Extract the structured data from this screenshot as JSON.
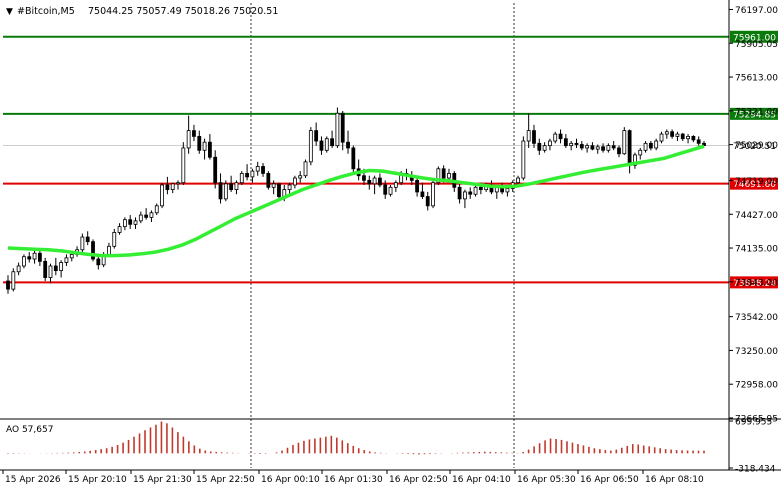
{
  "header": {
    "symbol": "#Bitcoin,M5",
    "ohlc": "75044.25 75057.49 75018.26 75020.51"
  },
  "colors": {
    "background": "#ffffff",
    "axis": "#000000",
    "grid": "#c8c8c8",
    "candle": "#000000",
    "ma": "#33ee33",
    "green_level": "#0a7a0a",
    "red_level": "#e00000",
    "ao": "#c0392b",
    "label_text": "#ffffff"
  },
  "chart_data": [
    {
      "type": "candlestick",
      "title": "#Bitcoin,M5",
      "y_ticks": [
        "76197.00",
        "75905.05",
        "75613.00",
        "75321.00",
        "75029.00",
        "74719.00",
        "74427.00",
        "74135.00",
        "73843.00",
        "73542.00",
        "73250.00",
        "72958.00",
        "72665.95"
      ],
      "ylim": [
        72665.95,
        76253
      ],
      "x_ticks": [
        "15 Apr 2026",
        "15 Apr 20:10",
        "15 Apr 21:30",
        "15 Apr 22:50",
        "16 Apr 00:10",
        "16 Apr 01:30",
        "16 Apr 02:50",
        "16 Apr 04:10",
        "16 Apr 05:30",
        "16 Apr 06:50",
        "16 Apr 08:10"
      ],
      "levels": [
        {
          "value": 75961.0,
          "label": "75961.00",
          "color": "green"
        },
        {
          "value": 75294.85,
          "label": "75294.85",
          "color": "green"
        },
        {
          "value": 74691.6,
          "label": "74691.60",
          "color": "red"
        },
        {
          "value": 73838.24,
          "label": "73838.24",
          "color": "red"
        }
      ],
      "current_price": {
        "value": 75020.51,
        "label": "75020.51"
      },
      "candles": [
        [
          73850,
          73900,
          73740,
          73780
        ],
        [
          73780,
          73960,
          73760,
          73930
        ],
        [
          73930,
          74010,
          73900,
          73980
        ],
        [
          73980,
          74080,
          73960,
          74060
        ],
        [
          74060,
          74100,
          74010,
          74040
        ],
        [
          74040,
          74120,
          74000,
          74090
        ],
        [
          74090,
          74130,
          73980,
          74020
        ],
        [
          74020,
          74050,
          73850,
          73880
        ],
        [
          73880,
          74000,
          73830,
          73980
        ],
        [
          73980,
          74050,
          73900,
          73940
        ],
        [
          73940,
          74030,
          73880,
          74010
        ],
        [
          74010,
          74080,
          73980,
          74050
        ],
        [
          74050,
          74110,
          74020,
          74080
        ],
        [
          74080,
          74150,
          74060,
          74120
        ],
        [
          74120,
          74260,
          74100,
          74230
        ],
        [
          74230,
          74280,
          74160,
          74190
        ],
        [
          74190,
          74210,
          74020,
          74040
        ],
        [
          74040,
          74080,
          73950,
          73990
        ],
        [
          73990,
          74100,
          73970,
          74080
        ],
        [
          74080,
          74180,
          74060,
          74150
        ],
        [
          74150,
          74300,
          74130,
          74270
        ],
        [
          74270,
          74350,
          74250,
          74320
        ],
        [
          74320,
          74400,
          74290,
          74380
        ],
        [
          74380,
          74420,
          74300,
          74340
        ],
        [
          74340,
          74400,
          74300,
          74370
        ],
        [
          74370,
          74450,
          74350,
          74420
        ],
        [
          74420,
          74480,
          74380,
          74400
        ],
        [
          74400,
          74460,
          74360,
          74440
        ],
        [
          74440,
          74520,
          74420,
          74500
        ],
        [
          74500,
          74700,
          74480,
          74680
        ],
        [
          74680,
          74750,
          74600,
          74640
        ],
        [
          74640,
          74700,
          74610,
          74690
        ],
        [
          74690,
          74720,
          74640,
          74700
        ],
        [
          74700,
          75050,
          74680,
          75000
        ],
        [
          75000,
          75280,
          74950,
          75150
        ],
        [
          75150,
          75200,
          75060,
          75100
        ],
        [
          75100,
          75150,
          74950,
          74980
        ],
        [
          74980,
          75080,
          74900,
          75050
        ],
        [
          75050,
          75120,
          74900,
          74920
        ],
        [
          74920,
          74980,
          74650,
          74700
        ],
        [
          74700,
          74780,
          74520,
          74560
        ],
        [
          74560,
          74720,
          74540,
          74690
        ],
        [
          74690,
          74760,
          74620,
          74640
        ],
        [
          74640,
          74720,
          74600,
          74700
        ],
        [
          74700,
          74800,
          74680,
          74780
        ],
        [
          74780,
          74860,
          74720,
          74750
        ],
        [
          74750,
          74820,
          74700,
          74800
        ],
        [
          74800,
          74880,
          74760,
          74840
        ],
        [
          74840,
          74870,
          74750,
          74780
        ],
        [
          74780,
          74800,
          74640,
          74660
        ],
        [
          74660,
          74720,
          74600,
          74690
        ],
        [
          74690,
          74700,
          74560,
          74580
        ],
        [
          74580,
          74680,
          74540,
          74640
        ],
        [
          74640,
          74700,
          74600,
          74680
        ],
        [
          74680,
          74760,
          74650,
          74740
        ],
        [
          74740,
          74800,
          74700,
          74760
        ],
        [
          74760,
          74900,
          74740,
          74880
        ],
        [
          74880,
          75180,
          74850,
          75150
        ],
        [
          75150,
          75220,
          75020,
          75060
        ],
        [
          75060,
          75100,
          74940,
          74980
        ],
        [
          74980,
          75100,
          74960,
          75080
        ],
        [
          75080,
          75150,
          75000,
          75020
        ],
        [
          75020,
          75350,
          75000,
          75300
        ],
        [
          75300,
          75320,
          74980,
          75050
        ],
        [
          75050,
          75150,
          74950,
          75000
        ],
        [
          75000,
          75020,
          74780,
          74820
        ],
        [
          74820,
          74900,
          74720,
          74760
        ],
        [
          74760,
          74820,
          74680,
          74720
        ],
        [
          74720,
          74760,
          74640,
          74690
        ],
        [
          74690,
          74760,
          74600,
          74740
        ],
        [
          74740,
          74780,
          74660,
          74680
        ],
        [
          74680,
          74720,
          74560,
          74600
        ],
        [
          74600,
          74680,
          74580,
          74660
        ],
        [
          74660,
          74720,
          74620,
          74700
        ],
        [
          74700,
          74800,
          74680,
          74780
        ],
        [
          74780,
          74820,
          74720,
          74760
        ],
        [
          74760,
          74800,
          74680,
          74720
        ],
        [
          74720,
          74760,
          74580,
          74620
        ],
        [
          74620,
          74700,
          74560,
          74580
        ],
        [
          74580,
          74620,
          74460,
          74500
        ],
        [
          74500,
          74720,
          74480,
          74700
        ],
        [
          74700,
          74840,
          74680,
          74820
        ],
        [
          74820,
          74850,
          74700,
          74740
        ],
        [
          74740,
          74820,
          74700,
          74780
        ],
        [
          74780,
          74800,
          74620,
          74660
        ],
        [
          74660,
          74700,
          74520,
          74560
        ],
        [
          74560,
          74640,
          74480,
          74620
        ],
        [
          74620,
          74660,
          74560,
          74600
        ],
        [
          74600,
          74680,
          74580,
          74660
        ],
        [
          74660,
          74700,
          74600,
          74640
        ],
        [
          74640,
          74700,
          74620,
          74680
        ],
        [
          74680,
          74720,
          74600,
          74620
        ],
        [
          74620,
          74680,
          74560,
          74660
        ],
        [
          74660,
          74700,
          74600,
          74620
        ],
        [
          74620,
          74680,
          74580,
          74650
        ],
        [
          74650,
          74720,
          74620,
          74700
        ],
        [
          74700,
          74760,
          74660,
          74740
        ],
        [
          74740,
          75100,
          74720,
          75060
        ],
        [
          75060,
          75300,
          75000,
          75150
        ],
        [
          75150,
          75200,
          75000,
          75040
        ],
        [
          75040,
          75080,
          74940,
          74980
        ],
        [
          74980,
          75050,
          74960,
          75020
        ],
        [
          75020,
          75080,
          74980,
          75060
        ],
        [
          75060,
          75140,
          75040,
          75120
        ],
        [
          75120,
          75160,
          75040,
          75080
        ],
        [
          75080,
          75120,
          75000,
          75020
        ],
        [
          75020,
          75060,
          74980,
          75040
        ],
        [
          75040,
          75080,
          75000,
          75030
        ],
        [
          75030,
          75060,
          74980,
          75000
        ],
        [
          75000,
          75040,
          74960,
          75020
        ],
        [
          75020,
          75050,
          74980,
          74990
        ],
        [
          74990,
          75030,
          74950,
          75010
        ],
        [
          75010,
          75040,
          74960,
          74980
        ],
        [
          74980,
          75040,
          74960,
          75020
        ],
        [
          75020,
          75060,
          74980,
          75000
        ],
        [
          75000,
          75020,
          74920,
          74950
        ],
        [
          74950,
          75180,
          74940,
          75150
        ],
        [
          75150,
          75160,
          74780,
          74850
        ],
        [
          74850,
          74960,
          74820,
          74940
        ],
        [
          74940,
          75000,
          74900,
          74980
        ],
        [
          74980,
          75060,
          74960,
          75040
        ],
        [
          75040,
          75060,
          74980,
          75000
        ],
        [
          75000,
          75080,
          74980,
          75060
        ],
        [
          75060,
          75140,
          75040,
          75120
        ],
        [
          75120,
          75160,
          75080,
          75140
        ],
        [
          75140,
          75160,
          75080,
          75100
        ],
        [
          75100,
          75140,
          75060,
          75120
        ],
        [
          75120,
          75130,
          75060,
          75080
        ],
        [
          75080,
          75120,
          75040,
          75100
        ],
        [
          75100,
          75110,
          75050,
          75070
        ],
        [
          75070,
          75100,
          75020,
          75040
        ],
        [
          75040,
          75060,
          75018,
          75020
        ]
      ],
      "ma": [
        74135,
        74130,
        74125,
        74120,
        74110,
        74095,
        74080,
        74070,
        74070,
        74075,
        74085,
        74100,
        74125,
        74160,
        74210,
        74270,
        74330,
        74390,
        74440,
        74490,
        74540,
        74590,
        74640,
        74680,
        74720,
        74755,
        74785,
        74805,
        74800,
        74780,
        74760,
        74740,
        74725,
        74715,
        74700,
        74685,
        74670,
        74665,
        74670,
        74690,
        74715,
        74740,
        74765,
        74790,
        74810,
        74830,
        74850,
        74870,
        74890,
        74910,
        74945,
        74980,
        75015
      ],
      "ao": {
        "label": "AO",
        "value_label": "57,657",
        "y_ticks": [
          "699.955",
          "-318.434"
        ],
        "range": [
          -318.434,
          699.955
        ],
        "values": [
          -10,
          -8,
          -6,
          -4,
          -2,
          0,
          2,
          4,
          6,
          8,
          10,
          14,
          20,
          28,
          40,
          55,
          70,
          90,
          110,
          140,
          180,
          230,
          290,
          360,
          430,
          500,
          560,
          620,
          690,
          650,
          560,
          460,
          360,
          260,
          170,
          100,
          60,
          40,
          30,
          20,
          15,
          10,
          5,
          0,
          -5,
          -10,
          -15,
          -10,
          0,
          20,
          60,
          120,
          180,
          230,
          270,
          300,
          320,
          340,
          360,
          380,
          340,
          280,
          220,
          160,
          110,
          70,
          40,
          20,
          10,
          5,
          0,
          -5,
          -10,
          -15,
          -20,
          -25,
          -20,
          -15,
          -10,
          -5,
          0,
          5,
          10,
          15,
          20,
          25,
          30,
          35,
          30,
          25,
          20,
          15,
          10,
          5,
          30,
          80,
          150,
          220,
          280,
          320,
          310,
          290,
          260,
          230,
          200,
          170,
          140,
          110,
          90,
          70,
          60,
          80,
          120,
          160,
          200,
          190,
          170,
          150,
          130,
          110,
          90,
          80,
          70,
          65,
          60,
          58,
          57,
          58
        ]
      }
    }
  ]
}
